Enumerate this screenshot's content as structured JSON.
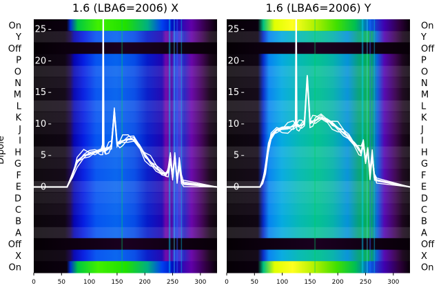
{
  "chart_data": [
    {
      "type": "heatmap",
      "title": "1.6 (LBA6=2006) X",
      "xlabel": "",
      "ylabel": "Dipole",
      "xlim": [
        0,
        330
      ],
      "xticks": [
        0,
        50,
        100,
        150,
        200,
        250,
        300
      ],
      "ylim": [
        -13.6,
        26.6
      ],
      "yticks": [
        0,
        5,
        10,
        15,
        20,
        25
      ],
      "grid": false,
      "line_series": {
        "name": "",
        "x": [
          0,
          60,
          70,
          78,
          90,
          100,
          110,
          120,
          124,
          125,
          126,
          128,
          130,
          135,
          140,
          145,
          150,
          155,
          160,
          170,
          180,
          190,
          200,
          210,
          220,
          230,
          238,
          242,
          246,
          250,
          254,
          258,
          262,
          266,
          270,
          330
        ],
        "y": [
          0,
          0,
          2,
          4,
          5,
          5.2,
          5.5,
          5.7,
          6.0,
          26.6,
          6.0,
          5.8,
          5.9,
          6.2,
          6.5,
          12.0,
          6.8,
          7.0,
          7.3,
          7.6,
          7.5,
          6.5,
          5.0,
          4.0,
          3.0,
          2.2,
          2.0,
          2.5,
          4.5,
          1.5,
          5.0,
          1.0,
          4.0,
          1.0,
          0.5,
          0
        ]
      }
    },
    {
      "type": "heatmap",
      "title": "1.6 (LBA6=2006) Y",
      "xlabel": "",
      "ylabel": "",
      "xlim": [
        0,
        330
      ],
      "xticks": [
        0,
        50,
        100,
        150,
        200,
        250,
        300
      ],
      "ylim": [
        -13.6,
        26.6
      ],
      "yticks": [
        0,
        5,
        10,
        15,
        20,
        25
      ],
      "grid": false,
      "line_series": {
        "name": "",
        "x": [
          0,
          60,
          65,
          70,
          75,
          80,
          90,
          100,
          110,
          120,
          124,
          125,
          126,
          130,
          135,
          140,
          145,
          150,
          155,
          160,
          170,
          180,
          190,
          200,
          210,
          220,
          230,
          238,
          242,
          246,
          250,
          254,
          258,
          262,
          266,
          270,
          330
        ],
        "y": [
          0,
          0,
          1,
          3,
          6,
          8,
          9,
          9.2,
          9.4,
          9.6,
          9.8,
          26.6,
          9.8,
          9.7,
          9.8,
          10.0,
          17.5,
          10.2,
          10.4,
          10.6,
          11.0,
          10.6,
          10.0,
          9.4,
          8.6,
          7.8,
          6.8,
          6.0,
          5.5,
          7.0,
          4.0,
          6.0,
          2.0,
          5.0,
          1.5,
          1.0,
          0
        ]
      }
    }
  ],
  "dipole_labels": [
    "On",
    "Y",
    "Off",
    "P",
    "O",
    "N",
    "M",
    "L",
    "K",
    "J",
    "I",
    "H",
    "G",
    "F",
    "E",
    "D",
    "C",
    "B",
    "A",
    "Off",
    "X",
    "On"
  ]
}
